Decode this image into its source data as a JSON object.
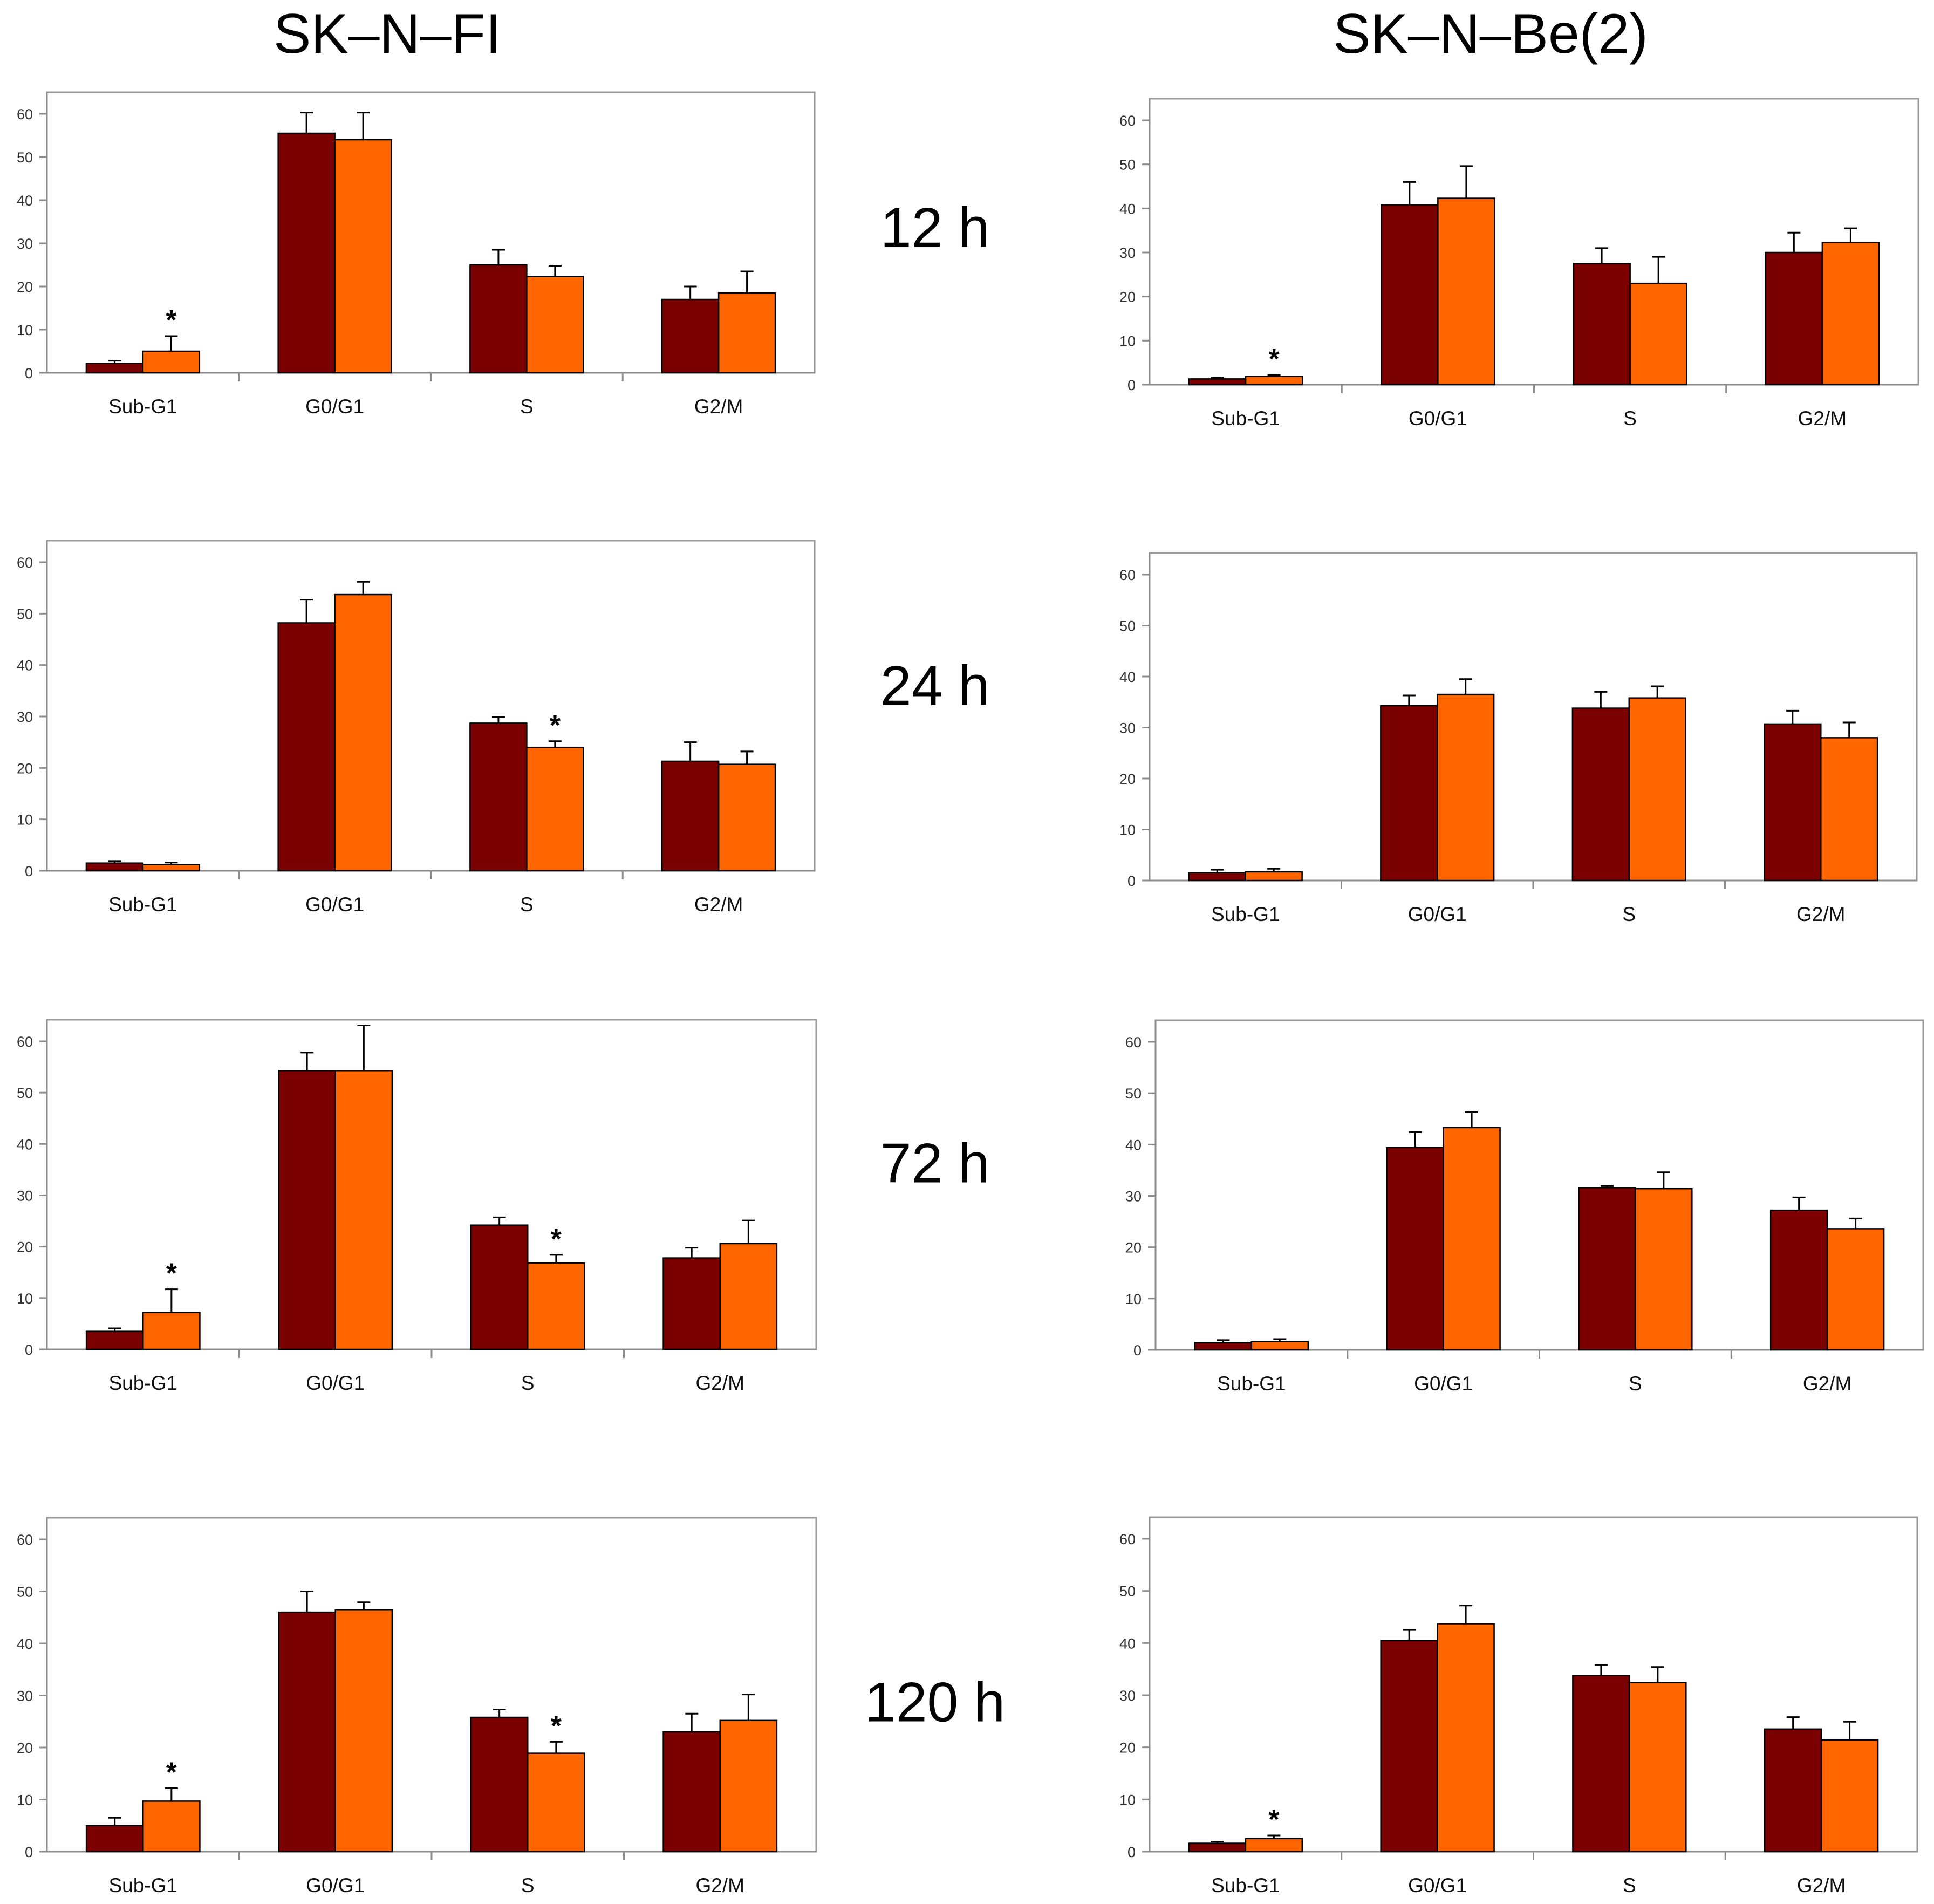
{
  "figure": {
    "column_titles": [
      "SK–N–FI",
      "SK–N–Be(2)"
    ],
    "time_labels": [
      "12 h",
      "24 h",
      "72 h",
      "120 h"
    ],
    "colors": {
      "series1": "#7b0000",
      "series2": "#ff6600",
      "axis": "#8c8c8c",
      "frame": "#9a9a9a",
      "text": "#000000"
    }
  },
  "chart_data": [
    {
      "type": "bar",
      "cell_line": "SK–N–FI",
      "time": "12 h",
      "categories": [
        "Sub-G1",
        "G0/G1",
        "S",
        "G2/M"
      ],
      "ylim": [
        0,
        60
      ],
      "yticks": [
        0,
        10,
        20,
        30,
        40,
        50,
        60
      ],
      "series": [
        {
          "values": [
            2.2,
            55.5,
            25.0,
            17.0
          ],
          "errors": [
            0.6,
            4.8,
            3.5,
            3.0
          ]
        },
        {
          "values": [
            5.0,
            54.0,
            22.3,
            18.5
          ],
          "errors": [
            3.5,
            6.3,
            2.5,
            5.0
          ]
        }
      ],
      "significance": [
        "",
        "",
        "",
        ""
      ],
      "significance_series2": [
        "*",
        "",
        "",
        ""
      ]
    },
    {
      "type": "bar",
      "cell_line": "SK–N–Be(2)",
      "time": "12 h",
      "categories": [
        "Sub-G1",
        "G0/G1",
        "S",
        "G2/M"
      ],
      "ylim": [
        0,
        60
      ],
      "yticks": [
        0,
        10,
        20,
        30,
        40,
        50,
        60
      ],
      "series": [
        {
          "values": [
            1.3,
            40.8,
            27.5,
            30.0
          ],
          "errors": [
            0.3,
            5.2,
            3.5,
            4.5
          ]
        },
        {
          "values": [
            1.9,
            42.3,
            23.0,
            32.3
          ],
          "errors": [
            0.3,
            7.3,
            6.0,
            3.2
          ]
        }
      ],
      "significance": [
        "",
        "",
        "",
        ""
      ],
      "significance_series2": [
        "*",
        "",
        "",
        ""
      ]
    },
    {
      "type": "bar",
      "cell_line": "SK–N–FI",
      "time": "24 h",
      "categories": [
        "Sub-G1",
        "G0/G1",
        "S",
        "G2/M"
      ],
      "ylim": [
        0,
        60
      ],
      "yticks": [
        0,
        10,
        20,
        30,
        40,
        50,
        60
      ],
      "series": [
        {
          "values": [
            1.5,
            48.2,
            28.7,
            21.3
          ],
          "errors": [
            0.4,
            4.5,
            1.2,
            3.7
          ]
        },
        {
          "values": [
            1.2,
            53.7,
            24.0,
            20.7
          ],
          "errors": [
            0.4,
            2.5,
            1.2,
            2.5
          ]
        }
      ],
      "significance": [
        "",
        "",
        "",
        ""
      ],
      "significance_series2": [
        "",
        "",
        "*",
        ""
      ]
    },
    {
      "type": "bar",
      "cell_line": "SK–N–Be(2)",
      "time": "24 h",
      "categories": [
        "Sub-G1",
        "G0/G1",
        "S",
        "G2/M"
      ],
      "ylim": [
        0,
        60
      ],
      "yticks": [
        0,
        10,
        20,
        30,
        40,
        50,
        60
      ],
      "series": [
        {
          "values": [
            1.5,
            34.3,
            33.8,
            30.7
          ],
          "errors": [
            0.6,
            2.0,
            3.2,
            2.6
          ]
        },
        {
          "values": [
            1.7,
            36.5,
            35.8,
            28.0
          ],
          "errors": [
            0.6,
            3.0,
            2.3,
            3.0
          ]
        }
      ],
      "significance": [
        "",
        "",
        "",
        ""
      ],
      "significance_series2": [
        "",
        "",
        "",
        ""
      ]
    },
    {
      "type": "bar",
      "cell_line": "SK–N–FI",
      "time": "72 h",
      "categories": [
        "Sub-G1",
        "G0/G1",
        "S",
        "G2/M"
      ],
      "ylim": [
        0,
        60
      ],
      "yticks": [
        0,
        10,
        20,
        30,
        40,
        50,
        60
      ],
      "series": [
        {
          "values": [
            3.5,
            54.3,
            24.2,
            17.8
          ],
          "errors": [
            0.6,
            3.5,
            1.5,
            2.0
          ]
        },
        {
          "values": [
            7.2,
            54.3,
            16.8,
            20.6
          ],
          "errors": [
            4.5,
            8.8,
            1.6,
            4.5
          ]
        }
      ],
      "significance": [
        "",
        "",
        "",
        ""
      ],
      "significance_series2": [
        "*",
        "",
        "*",
        ""
      ]
    },
    {
      "type": "bar",
      "cell_line": "SK–N–Be(2)",
      "time": "72 h",
      "categories": [
        "Sub-G1",
        "G0/G1",
        "S",
        "G2/M"
      ],
      "ylim": [
        0,
        60
      ],
      "yticks": [
        0,
        10,
        20,
        30,
        40,
        50,
        60
      ],
      "series": [
        {
          "values": [
            1.4,
            39.4,
            31.6,
            27.2
          ],
          "errors": [
            0.5,
            3.0,
            0.3,
            2.5
          ]
        },
        {
          "values": [
            1.6,
            43.3,
            31.4,
            23.6
          ],
          "errors": [
            0.5,
            3.0,
            3.2,
            2.0
          ]
        }
      ],
      "significance": [
        "",
        "",
        "",
        ""
      ],
      "significance_series2": [
        "",
        "",
        "",
        ""
      ]
    },
    {
      "type": "bar",
      "cell_line": "SK–N–FI",
      "time": "120 h",
      "categories": [
        "Sub-G1",
        "G0/G1",
        "S",
        "G2/M"
      ],
      "ylim": [
        0,
        60
      ],
      "yticks": [
        0,
        10,
        20,
        30,
        40,
        50,
        60
      ],
      "series": [
        {
          "values": [
            5.0,
            46.0,
            25.8,
            23.0
          ],
          "errors": [
            1.5,
            4.0,
            1.5,
            3.5
          ]
        },
        {
          "values": [
            9.7,
            46.4,
            18.9,
            25.2
          ],
          "errors": [
            2.5,
            1.5,
            2.2,
            5.0
          ]
        }
      ],
      "significance": [
        "",
        "",
        "",
        ""
      ],
      "significance_series2": [
        "*",
        "",
        "*",
        ""
      ]
    },
    {
      "type": "bar",
      "cell_line": "SK–N–Be(2)",
      "time": "120 h",
      "categories": [
        "Sub-G1",
        "G0/G1",
        "S",
        "G2/M"
      ],
      "ylim": [
        0,
        60
      ],
      "yticks": [
        0,
        10,
        20,
        30,
        40,
        50,
        60
      ],
      "series": [
        {
          "values": [
            1.6,
            40.5,
            33.8,
            23.5
          ],
          "errors": [
            0.3,
            2.0,
            2.0,
            2.3
          ]
        },
        {
          "values": [
            2.5,
            43.7,
            32.4,
            21.4
          ],
          "errors": [
            0.6,
            3.5,
            3.0,
            3.5
          ]
        }
      ],
      "significance": [
        "",
        "",
        "",
        ""
      ],
      "significance_series2": [
        "*",
        "",
        "",
        ""
      ]
    }
  ]
}
